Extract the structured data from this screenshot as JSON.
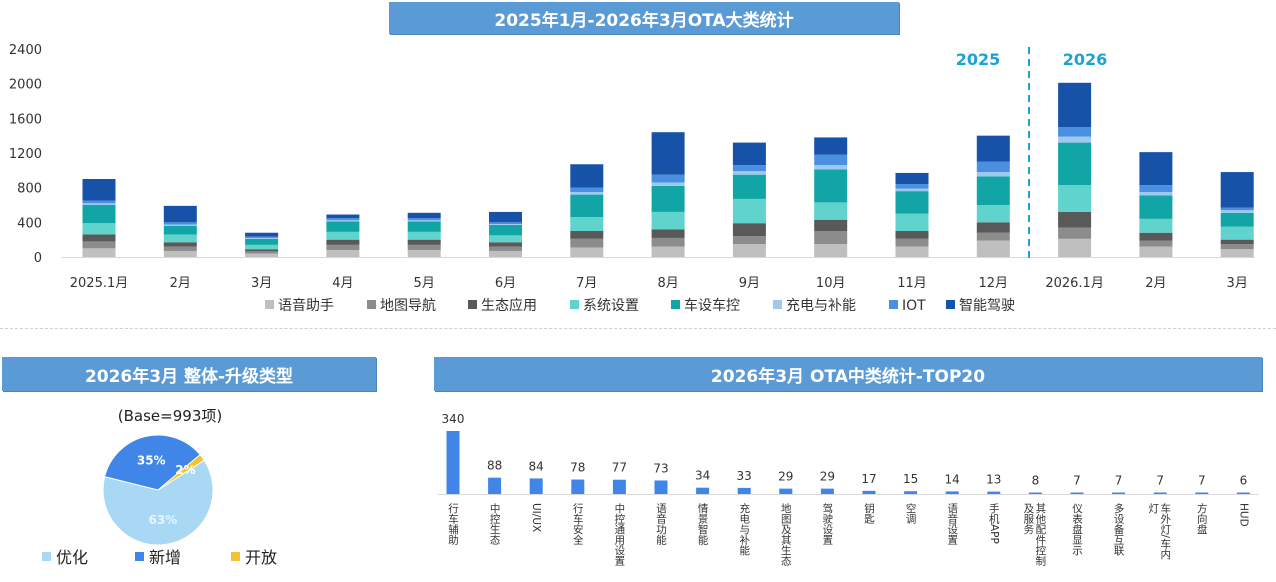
{
  "chart_data": [
    {
      "type": "bar",
      "stacked": true,
      "title": "2025年1月-2026年3月OTA大类统计",
      "categories": [
        "2025.1月",
        "2月",
        "3月",
        "4月",
        "5月",
        "6月",
        "7月",
        "8月",
        "9月",
        "10月",
        "11月",
        "12月",
        "2026.1月",
        "2月",
        "3月"
      ],
      "ylim": [
        0,
        2400
      ],
      "yticks": [
        "0",
        "400",
        "800",
        "1200",
        "1600",
        "2000",
        "2400"
      ],
      "year_labels": [
        "2025",
        "2026"
      ],
      "legend_position": "bottom",
      "series": [
        {
          "name": "语音助手",
          "color": "#bfbfbf",
          "values": [
            100,
            70,
            40,
            80,
            80,
            70,
            110,
            120,
            150,
            150,
            120,
            190,
            210,
            120,
            90
          ]
        },
        {
          "name": "地图导航",
          "color": "#8c8c8c",
          "values": [
            80,
            50,
            25,
            60,
            60,
            50,
            100,
            100,
            90,
            150,
            90,
            90,
            130,
            70,
            60
          ]
        },
        {
          "name": "生态应用",
          "color": "#595959",
          "values": [
            80,
            50,
            25,
            60,
            60,
            50,
            90,
            100,
            150,
            130,
            90,
            120,
            180,
            90,
            50
          ]
        },
        {
          "name": "系统设置",
          "color": "#5fd3cc",
          "values": [
            130,
            90,
            50,
            90,
            90,
            80,
            160,
            200,
            280,
            200,
            200,
            200,
            310,
            160,
            150
          ]
        },
        {
          "name": "车设车控",
          "color": "#12a5a5",
          "values": [
            210,
            100,
            70,
            120,
            120,
            120,
            260,
            300,
            280,
            380,
            260,
            330,
            490,
            270,
            160
          ]
        },
        {
          "name": "充电与补能",
          "color": "#9ec9ee",
          "values": [
            20,
            15,
            10,
            15,
            15,
            10,
            30,
            40,
            40,
            50,
            30,
            50,
            70,
            40,
            30
          ]
        },
        {
          "name": "IOT",
          "color": "#4a8fe0",
          "values": [
            30,
            25,
            15,
            25,
            25,
            20,
            50,
            90,
            70,
            120,
            50,
            120,
            110,
            80,
            30
          ]
        },
        {
          "name": "智能驾驶",
          "color": "#1552a8",
          "values": [
            250,
            190,
            45,
            40,
            60,
            120,
            270,
            490,
            260,
            200,
            130,
            300,
            510,
            380,
            410
          ]
        }
      ]
    },
    {
      "type": "pie",
      "title": "2026年3月 整体-升级类型",
      "base_label": "(Base=993项)",
      "slices": [
        {
          "name": "优化",
          "value": 63,
          "label": "63%",
          "color": "#a9d8f5"
        },
        {
          "name": "新增",
          "value": 35,
          "label": "35%",
          "color": "#3f86e8"
        },
        {
          "name": "开放",
          "value": 2,
          "label": "2%",
          "color": "#f2c230"
        }
      ]
    },
    {
      "type": "bar",
      "title": "2026年3月 OTA中类统计-TOP20",
      "color": "#3f86e8",
      "categories": [
        "行车辅助",
        "中控生态",
        "UI/UX",
        "行车安全",
        "中控通用设置",
        "语音功能",
        "情景智能",
        "充电与补能",
        "地图及其生态",
        "驾驶设置",
        "钥匙",
        "空调",
        "语音设置",
        "手机APP",
        "其他配件控制及服务",
        "仪表盘显示",
        "多设备互联",
        "车外灯/车内灯",
        "方向盘",
        "HUD"
      ],
      "values": [
        340,
        88,
        84,
        78,
        77,
        73,
        34,
        33,
        29,
        29,
        17,
        15,
        14,
        13,
        8,
        7,
        7,
        7,
        7,
        6
      ],
      "value_labels": [
        "340",
        "88",
        "84",
        "78",
        "77",
        "73",
        "34",
        "33",
        "29",
        "29",
        "17",
        "15",
        "14",
        "13",
        "8",
        "7",
        "7",
        "7",
        "7",
        "6"
      ]
    }
  ]
}
